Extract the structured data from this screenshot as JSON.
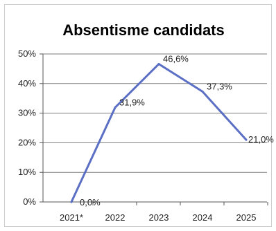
{
  "chart_data": {
    "type": "line",
    "title": "Absentisme candidats",
    "categories": [
      "2021*",
      "2022",
      "2023",
      "2024",
      "2025"
    ],
    "series": [
      {
        "values": [
          0.0,
          31.9,
          46.6,
          37.3,
          21.0
        ],
        "data_labels": [
          "0,0%",
          "31,9%",
          "46,6%",
          "37,3%",
          "21,0%"
        ]
      }
    ],
    "yticks": [
      "0%",
      "10%",
      "20%",
      "30%",
      "40%",
      "50%"
    ],
    "ylim": [
      0,
      50
    ],
    "grid": true,
    "colors": {
      "line": "#5b6fc4",
      "grid": "#7a7a7a",
      "axis": "#555555"
    }
  }
}
